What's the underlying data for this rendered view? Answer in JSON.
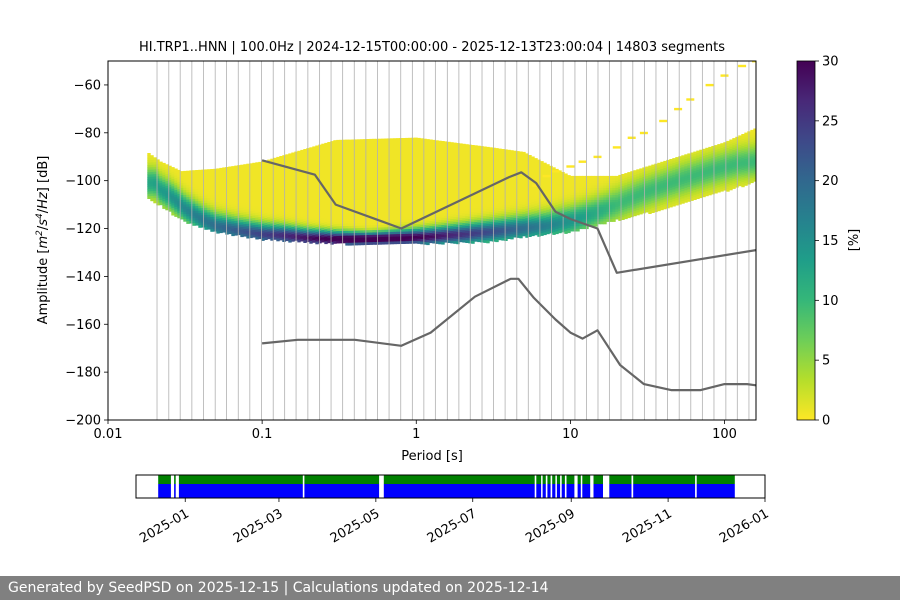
{
  "title": "HI.TRP1..HNN | 100.0Hz | 2024-12-15T00:00:00 - 2025-12-13T23:00:04 | 14803 segments",
  "footer": "Generated by SeedPSD on 2025-12-15 | Calculations updated on 2025-12-14",
  "chart_data": [
    {
      "type": "heatmap",
      "title": "HI.TRP1..HNN | 100.0Hz | 2024-12-15T00:00:00 - 2025-12-13T23:00:04 | 14803 segments",
      "xlabel": "Period [s]",
      "ylabel_parts": [
        "Amplitude [",
        "m",
        "2",
        "/",
        "s",
        "4",
        "/",
        "Hz",
        "] [dB]"
      ],
      "xscale": "log",
      "xlim": [
        0.01,
        160
      ],
      "ylim": [
        -200,
        -50
      ],
      "x_ticks": [
        {
          "value": 0.01,
          "label": "0.01"
        },
        {
          "value": 0.1,
          "label": "0.1"
        },
        {
          "value": 1,
          "label": "1"
        },
        {
          "value": 10,
          "label": "10"
        },
        {
          "value": 100,
          "label": "100"
        }
      ],
      "y_ticks": [
        {
          "value": -60,
          "label": "−60"
        },
        {
          "value": -80,
          "label": "−80"
        },
        {
          "value": -100,
          "label": "−100"
        },
        {
          "value": -120,
          "label": "−120"
        },
        {
          "value": -140,
          "label": "−140"
        },
        {
          "value": -160,
          "label": "−160"
        },
        {
          "value": -180,
          "label": "−180"
        },
        {
          "value": -200,
          "label": "−200"
        }
      ],
      "grid": "vertical",
      "grid_periods": [
        0.0208,
        0.0248,
        0.0294,
        0.035,
        0.0416,
        0.0496,
        0.0588,
        0.07,
        0.0832,
        0.099,
        0.118,
        0.14,
        0.166,
        0.198,
        0.236,
        0.28,
        0.333,
        0.396,
        0.471,
        0.56,
        0.666,
        0.793,
        0.943,
        1.12,
        1.33,
        1.59,
        1.89,
        2.24,
        2.67,
        3.17,
        3.77,
        4.49,
        5.33,
        6.34,
        7.54,
        8.97,
        10.7,
        12.7,
        15.1,
        17.9,
        21.3,
        25.4,
        30.2,
        35.9,
        42.7,
        50.8,
        60.4,
        71.8,
        85.4,
        102,
        121,
        144
      ],
      "colorbar": {
        "label": "[%]",
        "range": [
          0,
          30
        ],
        "ticks": [
          0,
          5,
          10,
          15,
          20,
          25,
          30
        ],
        "colormap": "viridis_r",
        "stops": [
          "#fde725",
          "#b5de2b",
          "#6ece58",
          "#35b779",
          "#1f9e89",
          "#26828e",
          "#31688e",
          "#3e4989",
          "#482878",
          "#440154"
        ]
      },
      "mode_curve": {
        "period": [
          0.02,
          0.022,
          0.026,
          0.032,
          0.04,
          0.05,
          0.07,
          0.1,
          0.14,
          0.2,
          0.3,
          0.5,
          0.8,
          1.2,
          2,
          3,
          5,
          7,
          10,
          14,
          20,
          30,
          50,
          80,
          120,
          160
        ],
        "db": [
          -101,
          -104,
          -107,
          -112,
          -116,
          -119,
          -121,
          -122.5,
          -123,
          -124,
          -124.5,
          -124.5,
          -124,
          -123.5,
          -122.5,
          -121.5,
          -120,
          -119,
          -117,
          -114,
          -110,
          -105,
          -100,
          -96,
          -93,
          -92
        ]
      },
      "density_band": {
        "period": [
          0.018,
          0.022,
          0.03,
          0.05,
          0.1,
          0.3,
          1,
          3,
          5,
          10,
          20,
          50,
          100,
          160
        ],
        "upper_db": [
          -88,
          -92,
          -96,
          -95,
          -92,
          -83,
          -82,
          -86,
          -88,
          -98,
          -98,
          -90,
          -84,
          -78
        ],
        "lower_db": [
          -107,
          -110,
          -116,
          -121,
          -124,
          -126,
          -126,
          -125,
          -123,
          -121,
          -116,
          -110,
          -104,
          -100
        ]
      },
      "outliers": {
        "period": [
          6,
          7,
          8,
          10,
          12,
          15,
          20,
          25,
          30,
          40,
          50,
          60,
          80,
          100,
          130,
          160
        ],
        "db": [
          -102,
          -98,
          -96,
          -94,
          -92,
          -90,
          -86,
          -82,
          -80,
          -75,
          -70,
          -66,
          -60,
          -56,
          -52,
          -50
        ]
      },
      "series": [
        {
          "name": "",
          "period": [
            0.1,
            0.22,
            0.3,
            0.8,
            4,
            4.8,
            6,
            8,
            10,
            15,
            20,
            160
          ],
          "db": [
            -91.5,
            -97.5,
            -110,
            -120,
            -98.5,
            -96.5,
            -101,
            -113,
            -116,
            -120,
            -138.5,
            -129
          ]
        },
        {
          "name": "",
          "period": [
            0.1,
            0.17,
            0.4,
            0.8,
            1.24,
            2.4,
            4.1,
            4.6,
            5.8,
            8,
            10,
            12,
            15,
            21,
            30,
            45,
            70,
            100,
            140,
            160
          ],
          "db": [
            -168,
            -166.5,
            -166.5,
            -169,
            -163.5,
            -148.5,
            -141,
            -141,
            -149,
            -158,
            -163.5,
            -166,
            -162.5,
            -177,
            -185,
            -187.5,
            -187.5,
            -185,
            -185,
            -185.5
          ]
        }
      ]
    },
    {
      "type": "timeline",
      "x_ticks": [
        {
          "date": "2025-01-01",
          "label": "2025-01"
        },
        {
          "date": "2025-03-01",
          "label": "2025-03"
        },
        {
          "date": "2025-05-01",
          "label": "2025-05"
        },
        {
          "date": "2025-07-01",
          "label": "2025-07"
        },
        {
          "date": "2025-09-01",
          "label": "2025-09"
        },
        {
          "date": "2025-11-01",
          "label": "2025-11"
        },
        {
          "date": "2026-01-01",
          "label": "2026-01"
        }
      ],
      "xlim": [
        "2024-12-01",
        "2026-01-01"
      ],
      "colors": {
        "top": "#008000",
        "bottom": "#0000ff"
      },
      "coverage_segments": [
        [
          "2024-12-15",
          "2024-12-23"
        ],
        [
          "2024-12-25",
          "2024-12-26"
        ],
        [
          "2024-12-28",
          "2025-03-16"
        ],
        [
          "2025-03-17",
          "2025-05-03"
        ],
        [
          "2025-05-06",
          "2025-08-09"
        ],
        [
          "2025-08-10",
          "2025-08-13"
        ],
        [
          "2025-08-14",
          "2025-08-16"
        ],
        [
          "2025-08-17",
          "2025-08-19"
        ],
        [
          "2025-08-20",
          "2025-08-22"
        ],
        [
          "2025-08-23",
          "2025-08-25"
        ],
        [
          "2025-08-26",
          "2025-08-28"
        ],
        [
          "2025-08-29",
          "2025-09-03"
        ],
        [
          "2025-09-05",
          "2025-09-07"
        ],
        [
          "2025-09-08",
          "2025-09-13"
        ],
        [
          "2025-09-15",
          "2025-09-21"
        ],
        [
          "2025-09-25",
          "2025-10-09"
        ],
        [
          "2025-10-10",
          "2025-11-18"
        ],
        [
          "2025-11-19",
          "2025-12-13"
        ]
      ]
    }
  ]
}
